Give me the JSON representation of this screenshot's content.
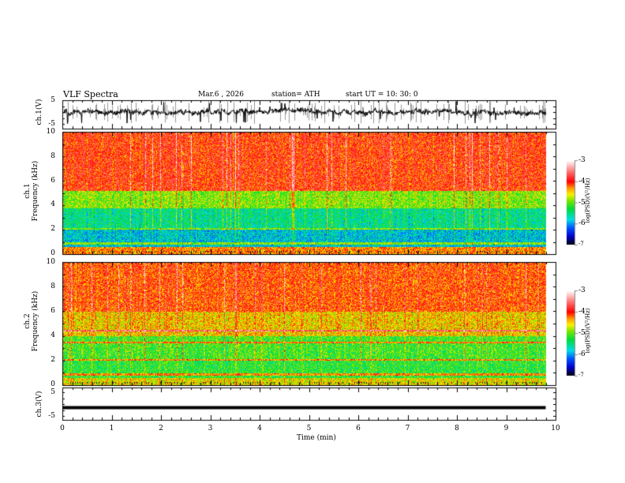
{
  "header": {
    "title": "VLF  Spectra",
    "date": "Mar.6  , 2026",
    "station": "station= ATH",
    "start": "start  UT  =    10: 30: 0"
  },
  "chart_data": [
    {
      "type": "line",
      "name": "ch1 waveform",
      "ylabel": "ch.1(V)",
      "ylim": [
        -5,
        5
      ],
      "yticks": [
        "5",
        "-5"
      ],
      "xlim": [
        0,
        10
      ],
      "data_end_min": 9.8,
      "description_values": {
        "baseline_v": 0,
        "noise_amplitude_v": 5
      }
    },
    {
      "type": "heatmap",
      "name": "ch1 spectrogram",
      "ylabel": "ch.1\nFrequency  (kHz)",
      "ylabel_line1": "ch.1",
      "ylabel_line2": "Frequency  (kHz)",
      "ylim": [
        0,
        10
      ],
      "yticks": [
        "0",
        "2",
        "4",
        "6",
        "8",
        "10"
      ],
      "xlim": [
        0,
        10
      ],
      "band_levels": [
        {
          "f_range": [
            0,
            0.6
          ],
          "log_psd": -4.3
        },
        {
          "f_range": [
            0.6,
            2.2
          ],
          "log_psd": -5.8
        },
        {
          "f_range": [
            2.2,
            3.8
          ],
          "log_psd": -5.5
        },
        {
          "f_range": [
            3.8,
            5.2
          ],
          "log_psd": -4.9
        },
        {
          "f_range": [
            5.2,
            10
          ],
          "log_psd": -4.0
        }
      ],
      "colorbar": {
        "label": "log(PSD)(V²/Hz)",
        "range": [
          -7,
          -3
        ],
        "ticks": [
          "-3",
          "-4",
          "-5",
          "-6",
          "-7"
        ]
      }
    },
    {
      "type": "heatmap",
      "name": "ch2 spectrogram",
      "ylabel_line1": "ch.2",
      "ylabel_line2": "Frequency  (kHz)",
      "ylim": [
        0,
        10
      ],
      "yticks": [
        "0",
        "2",
        "4",
        "6",
        "8",
        "10"
      ],
      "xlim": [
        0,
        10
      ],
      "band_levels": [
        {
          "f_range": [
            0,
            0.6
          ],
          "log_psd": -4.6
        },
        {
          "f_range": [
            0.6,
            2.2
          ],
          "log_psd": -5.2
        },
        {
          "f_range": [
            2.2,
            4.0
          ],
          "log_psd": -5.1
        },
        {
          "f_range": [
            4.0,
            6.0
          ],
          "log_psd": -4.5
        },
        {
          "f_range": [
            6.0,
            10
          ],
          "log_psd": -4.1
        }
      ],
      "colorbar": {
        "label": "log(PSD)(V²/Hz)",
        "range": [
          -7,
          -3
        ],
        "ticks": [
          "-3",
          "-4",
          "-5",
          "-6",
          "-7"
        ]
      }
    },
    {
      "type": "line",
      "name": "ch3 waveform",
      "ylabel": "ch.3(V)",
      "ylim": [
        -5,
        5
      ],
      "yticks": [
        "5",
        "-5"
      ],
      "xlim": [
        0,
        10
      ],
      "constant_value_v": -1.5
    }
  ],
  "xaxis": {
    "label": "Time  (min)",
    "ticks": [
      "0",
      "1",
      "2",
      "3",
      "4",
      "5",
      "6",
      "7",
      "8",
      "9",
      "10"
    ]
  }
}
